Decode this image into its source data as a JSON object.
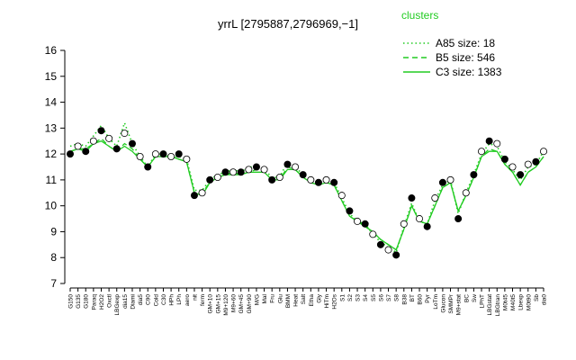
{
  "chart_data": {
    "type": "line",
    "title": "yrrL [2795887,2796969,−1]",
    "legend_title": "clusters",
    "legend_position": "top-right",
    "categories": [
      "G150",
      "G135",
      "G180",
      "Paraq",
      "H2O2",
      "Oxctl",
      "LBGexp",
      "dia15",
      "Diami",
      "dia5",
      "C90",
      "Cold",
      "C30",
      "HPh",
      "LPh",
      "aero",
      "nit",
      "ferm",
      "GM+10",
      "GM+15",
      "M9+120",
      "M9+60",
      "GM+45",
      "GM+90",
      "M/G",
      "Mal",
      "Fru",
      "Glu",
      "BMM",
      "Heat",
      "Salt",
      "Etha",
      "Gly",
      "HiTm",
      "H2Os",
      "S1",
      "S2",
      "S3",
      "S4",
      "S5",
      "S6",
      "S7",
      "S8",
      "B38",
      "BT",
      "B60",
      "Pyr",
      "LoTm",
      "Glucon",
      "SMMPr",
      "M9+stat",
      "BC",
      "Sw",
      "LPhT",
      "LBGstat",
      "LBGtran",
      "M0t45",
      "M40t5",
      "Lbexp",
      "M0t90",
      "Sb",
      "dia0"
    ],
    "points": {
      "color": "#000000",
      "values": [
        12.0,
        12.3,
        12.1,
        12.5,
        12.9,
        12.6,
        12.2,
        12.8,
        12.4,
        11.9,
        11.5,
        12.0,
        12.0,
        11.9,
        12.0,
        11.8,
        10.4,
        10.5,
        11.0,
        11.1,
        11.3,
        11.3,
        11.3,
        11.4,
        11.5,
        11.4,
        11.0,
        11.1,
        11.6,
        11.5,
        11.2,
        11.0,
        10.9,
        11.0,
        10.9,
        10.4,
        9.8,
        9.4,
        9.3,
        8.9,
        8.5,
        8.3,
        8.1,
        9.3,
        10.3,
        9.5,
        9.2,
        10.3,
        10.9,
        11.0,
        9.5,
        10.5,
        11.2,
        12.1,
        12.5,
        12.4,
        11.8,
        11.5,
        11.2,
        11.6,
        11.7,
        12.1
      ]
    },
    "series": [
      {
        "name": "A85 size: 18",
        "color": "#22cc22",
        "dash": "dotted",
        "values": [
          12.3,
          12.4,
          12.3,
          12.7,
          13.1,
          12.6,
          12.3,
          13.2,
          12.4,
          11.9,
          11.5,
          12.0,
          12.0,
          11.9,
          11.9,
          11.8,
          10.6,
          10.6,
          11.0,
          11.2,
          11.3,
          11.4,
          11.3,
          11.5,
          11.5,
          11.4,
          11.1,
          11.1,
          11.7,
          11.5,
          11.2,
          11.0,
          10.9,
          11.0,
          10.9,
          10.3,
          9.7,
          9.4,
          9.3,
          8.9,
          8.6,
          8.4,
          8.2,
          9.2,
          10.1,
          9.4,
          9.3,
          10.2,
          10.8,
          11.0,
          9.7,
          10.5,
          11.2,
          12.0,
          12.4,
          12.3,
          11.7,
          11.4,
          11.0,
          11.5,
          11.6,
          12.1
        ]
      },
      {
        "name": "B5 size: 546",
        "color": "#22cc22",
        "dash": "dashed",
        "values": [
          12.1,
          12.2,
          12.2,
          12.4,
          12.6,
          12.3,
          12.1,
          12.4,
          12.2,
          11.8,
          11.5,
          11.9,
          11.9,
          11.9,
          11.8,
          11.7,
          10.5,
          10.5,
          10.9,
          11.1,
          11.2,
          11.3,
          11.2,
          11.3,
          11.4,
          11.3,
          11.0,
          11.0,
          11.5,
          11.4,
          11.1,
          10.9,
          10.8,
          10.9,
          10.8,
          10.2,
          9.6,
          9.4,
          9.2,
          9.0,
          8.7,
          8.5,
          8.3,
          9.1,
          10.0,
          9.4,
          9.3,
          10.0,
          10.7,
          10.9,
          9.8,
          10.4,
          11.1,
          11.9,
          12.2,
          12.1,
          11.6,
          11.3,
          10.8,
          11.3,
          11.5,
          11.9
        ]
      },
      {
        "name": "C3 size: 1383",
        "color": "#22cc22",
        "dash": "solid",
        "values": [
          12.1,
          12.2,
          12.1,
          12.4,
          12.5,
          12.3,
          12.1,
          12.3,
          12.1,
          11.8,
          11.5,
          11.9,
          11.9,
          11.9,
          11.8,
          11.7,
          10.5,
          10.4,
          10.9,
          11.1,
          11.2,
          11.2,
          11.2,
          11.3,
          11.3,
          11.3,
          11.0,
          11.0,
          11.4,
          11.4,
          11.1,
          10.9,
          10.8,
          10.9,
          10.8,
          10.2,
          9.6,
          9.4,
          9.2,
          9.0,
          8.7,
          8.5,
          8.3,
          9.1,
          10.0,
          9.4,
          9.3,
          10.0,
          10.7,
          10.9,
          9.8,
          10.4,
          11.1,
          11.9,
          12.1,
          12.1,
          11.6,
          11.3,
          10.8,
          11.3,
          11.5,
          11.9
        ]
      }
    ],
    "ylim": [
      7,
      16
    ],
    "yticks": [
      7,
      8,
      9,
      10,
      11,
      12,
      13,
      14,
      15,
      16
    ],
    "grid": false
  }
}
